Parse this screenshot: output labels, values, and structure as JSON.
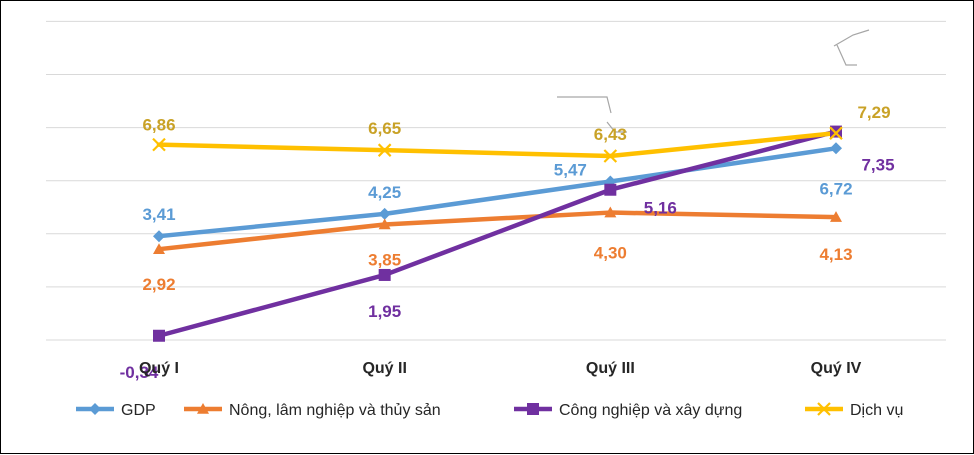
{
  "chart_data": {
    "type": "line",
    "title": "",
    "xlabel": "",
    "ylabel": "",
    "categories": [
      "Quý I",
      "Quý II",
      "Quý III",
      "Quý IV"
    ],
    "ylim": [
      -0.5,
      8
    ],
    "grid": true,
    "legend_position": "bottom",
    "series": [
      {
        "name": "GDP",
        "color": "#5B9BD5",
        "marker": "diamond",
        "values": [
          3.41,
          4.25,
          5.47,
          6.72
        ],
        "labels": [
          "3,41",
          "4,25",
          "5,47",
          "6,72"
        ]
      },
      {
        "name": "Nông, lâm nghiệp và thủy sản",
        "color": "#ED7D31",
        "marker": "triangle",
        "values": [
          2.92,
          3.85,
          4.3,
          4.13
        ],
        "labels": [
          "2,92",
          "3,85",
          "4,30",
          "4,13"
        ]
      },
      {
        "name": "Công nghiệp và xây dựng",
        "color": "#7030A0",
        "marker": "square",
        "values": [
          -0.34,
          1.95,
          5.16,
          7.35
        ],
        "labels": [
          "-0,34",
          "1,95",
          "5,16",
          "7,35"
        ]
      },
      {
        "name": "Dịch vụ",
        "color": "#FFC000",
        "marker": "x",
        "values": [
          6.86,
          6.65,
          6.43,
          7.29
        ],
        "labels": [
          "6,86",
          "6,65",
          "6,43",
          "7,29"
        ]
      }
    ]
  }
}
